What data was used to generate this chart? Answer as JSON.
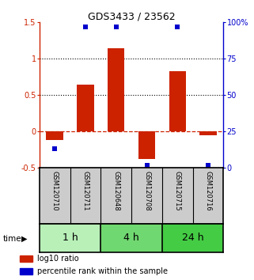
{
  "title": "GDS3433 / 23562",
  "samples": [
    "GSM120710",
    "GSM120711",
    "GSM120648",
    "GSM120708",
    "GSM120715",
    "GSM120716"
  ],
  "log10_ratio": [
    -0.12,
    0.65,
    1.15,
    -0.38,
    0.83,
    -0.05
  ],
  "percentile_rank": [
    13,
    97,
    97,
    2,
    97,
    2
  ],
  "groups": [
    {
      "label": "1 h",
      "start": 0,
      "end": 2,
      "color": "#b8f0b8"
    },
    {
      "label": "4 h",
      "start": 2,
      "end": 4,
      "color": "#70d870"
    },
    {
      "label": "24 h",
      "start": 4,
      "end": 6,
      "color": "#44cc44"
    }
  ],
  "ylim_left": [
    -0.5,
    1.5
  ],
  "ylim_right": [
    0,
    100
  ],
  "yticks_left": [
    -0.5,
    0,
    0.5,
    1.0,
    1.5
  ],
  "ytick_labels_left": [
    "-0.5",
    "0",
    "0.5",
    "1",
    "1.5"
  ],
  "yticks_right": [
    0,
    25,
    50,
    75,
    100
  ],
  "ytick_labels_right": [
    "0",
    "25",
    "50",
    "75",
    "100%"
  ],
  "bar_color": "#cc2200",
  "dot_color": "#0000cc",
  "hline_y": 0,
  "dotted_lines": [
    0.5,
    1.0
  ],
  "bar_width": 0.55,
  "dot_size": 25,
  "label_bg_color": "#cccccc",
  "title_fontsize": 9,
  "tick_fontsize": 7,
  "sample_fontsize": 6,
  "group_fontsize": 9,
  "legend_fontsize": 7
}
